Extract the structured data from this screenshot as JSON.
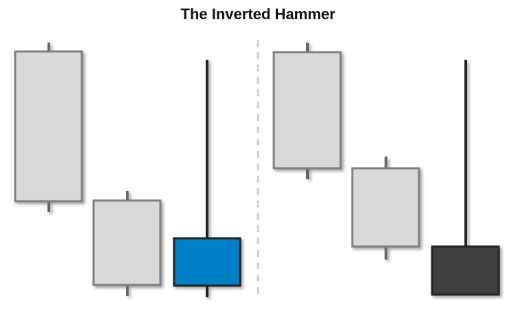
{
  "title": "The Inverted Hammer",
  "colors": {
    "bearish_fill": "#d9d9d9",
    "bearish_stroke": "#808080",
    "bearish_wick": "#666666",
    "highlight_fill": "#0080c6",
    "highlight_dark_fill": "#404040",
    "outline_dark": "#222222",
    "divider": "#cccccc"
  },
  "panels": [
    {
      "name": "left",
      "candles": [
        {
          "role": "bearish",
          "style": "light"
        },
        {
          "role": "bearish",
          "style": "light"
        },
        {
          "role": "inverted-hammer",
          "style": "blue"
        }
      ]
    },
    {
      "name": "right",
      "candles": [
        {
          "role": "bearish",
          "style": "light"
        },
        {
          "role": "bearish",
          "style": "light"
        },
        {
          "role": "inverted-hammer",
          "style": "dark"
        }
      ]
    }
  ]
}
